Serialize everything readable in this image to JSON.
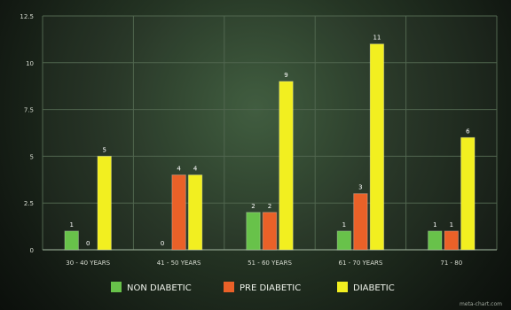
{
  "chart_data": {
    "type": "bar",
    "categories": [
      "30 - 40 YEARS",
      "41 - 50 YEARS",
      "51 - 60 YEARS",
      "61 - 70 YEARS",
      "71 - 80"
    ],
    "series": [
      {
        "name": "NON DIABETIC",
        "values": [
          1,
          0,
          2,
          1,
          1
        ],
        "color": "#68c24a"
      },
      {
        "name": "PRE DIABETIC",
        "values": [
          0,
          4,
          2,
          3,
          1
        ],
        "color": "#ea6128"
      },
      {
        "name": "DIABETIC",
        "values": [
          5,
          4,
          9,
          11,
          6
        ],
        "color": "#f2ef20"
      }
    ],
    "y_ticks": [
      "0",
      "2.5",
      "5",
      "7.5",
      "10",
      "12.5"
    ],
    "ylim": [
      0,
      12.5
    ],
    "grid": true,
    "legend_position": "bottom",
    "source": "meta-chart.com"
  },
  "colors": {
    "background": "#2f432f",
    "grid": "#51664f",
    "axis": "#8da08a"
  }
}
